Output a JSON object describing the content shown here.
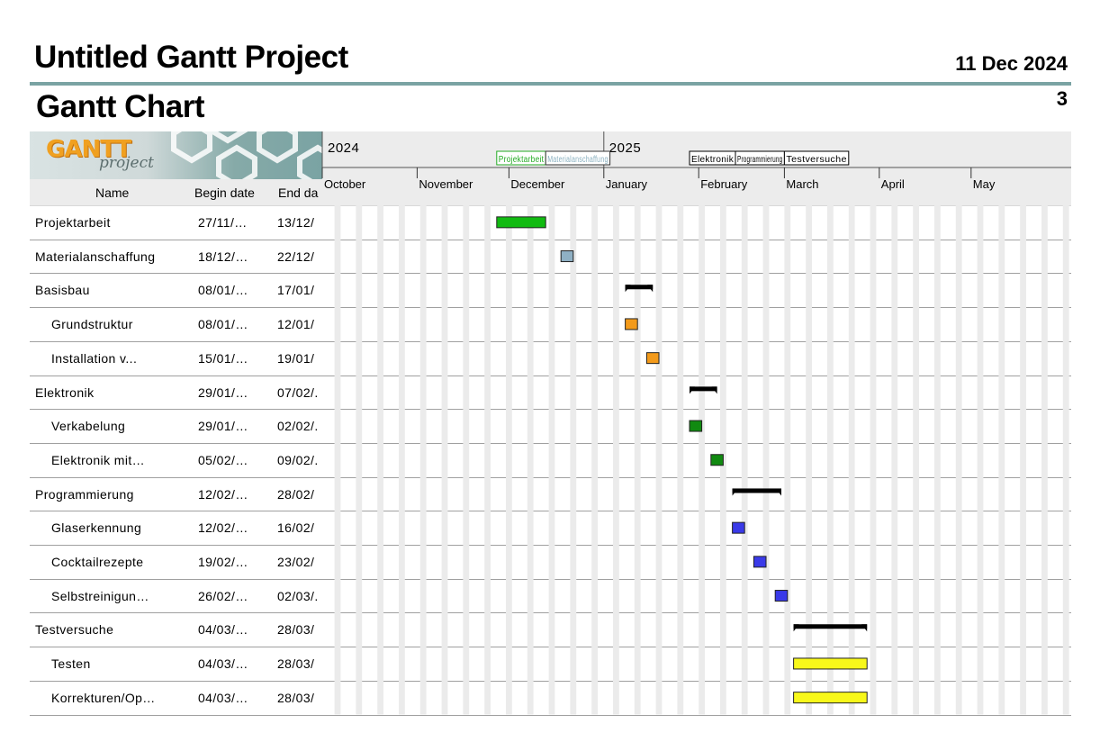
{
  "header": {
    "title": "Untitled Gantt Project",
    "date": "11 Dec 2024",
    "subtitle": "Gantt Chart",
    "page_number": "3"
  },
  "logo": {
    "word": "GANTT",
    "sub": "project"
  },
  "table": {
    "columns": [
      "Name",
      "Begin date",
      "End da"
    ]
  },
  "chart_data": {
    "type": "gantt",
    "years": [
      {
        "label": "2024",
        "date": "2024-10-01"
      },
      {
        "label": "2025",
        "date": "2025-01-01"
      }
    ],
    "months": [
      {
        "label": "October",
        "date": "2024-10-01"
      },
      {
        "label": "November",
        "date": "2024-11-01"
      },
      {
        "label": "December",
        "date": "2024-12-01"
      },
      {
        "label": "January",
        "date": "2025-01-01"
      },
      {
        "label": "February",
        "date": "2025-02-01"
      },
      {
        "label": "March",
        "date": "2025-03-01"
      },
      {
        "label": "April",
        "date": "2025-04-01"
      },
      {
        "label": "May",
        "date": "2025-05-01"
      }
    ],
    "range": [
      "2024-10-01",
      "2025-05-31"
    ],
    "timeline_labels": [
      {
        "label": "Projektarbeit",
        "start": "2024-11-27",
        "end": "2024-12-13",
        "color": "#22aa22",
        "border": "#22aa22"
      },
      {
        "label": "Materialanschaffung",
        "start": "2024-12-13",
        "end": "2025-01-03",
        "color": "#8ab0c0",
        "border": "#333333"
      },
      {
        "label": "Elektronik",
        "start": "2025-01-29",
        "end": "2025-02-13",
        "color": "#000000",
        "border": "#000000"
      },
      {
        "label": "Programmierung",
        "start": "2025-02-13",
        "end": "2025-03-01",
        "color": "#000000",
        "border": "#000000"
      },
      {
        "label": "Testversuche",
        "start": "2025-03-01",
        "end": "2025-03-22",
        "color": "#000000",
        "border": "#000000"
      }
    ],
    "tasks": [
      {
        "name": "Projektarbeit",
        "begin": "27/11/…",
        "end": "13/12/",
        "start_date": "2024-11-27",
        "end_date": "2024-12-13",
        "kind": "task",
        "color": "#11bb11",
        "indent": 0
      },
      {
        "name": "Materialanschaffung",
        "begin": "18/12/…",
        "end": "22/12/",
        "start_date": "2024-12-18",
        "end_date": "2024-12-22",
        "kind": "task",
        "color": "#8fb0c4",
        "indent": 0
      },
      {
        "name": "Basisbau",
        "begin": "08/01/…",
        "end": "17/01/",
        "start_date": "2025-01-08",
        "end_date": "2025-01-17",
        "kind": "summary",
        "color": "#000000",
        "indent": 0
      },
      {
        "name": "Grundstruktur",
        "begin": "08/01/…",
        "end": "12/01/",
        "start_date": "2025-01-08",
        "end_date": "2025-01-12",
        "kind": "task",
        "color": "#f39a1a",
        "indent": 1
      },
      {
        "name": "Installation v...",
        "begin": "15/01/…",
        "end": "19/01/",
        "start_date": "2025-01-15",
        "end_date": "2025-01-19",
        "kind": "task",
        "color": "#f39a1a",
        "indent": 1
      },
      {
        "name": "Elektronik",
        "begin": "29/01/…",
        "end": "07/02/.",
        "start_date": "2025-01-29",
        "end_date": "2025-02-07",
        "kind": "summary",
        "color": "#000000",
        "indent": 0
      },
      {
        "name": "Verkabelung",
        "begin": "29/01/…",
        "end": "02/02/.",
        "start_date": "2025-01-29",
        "end_date": "2025-02-02",
        "kind": "task",
        "color": "#118a11",
        "indent": 1
      },
      {
        "name": "Elektronik mit…",
        "begin": "05/02/…",
        "end": "09/02/.",
        "start_date": "2025-02-05",
        "end_date": "2025-02-09",
        "kind": "task",
        "color": "#118a11",
        "indent": 1
      },
      {
        "name": "Programmierung",
        "begin": "12/02/…",
        "end": "28/02/",
        "start_date": "2025-02-12",
        "end_date": "2025-02-28",
        "kind": "summary",
        "color": "#000000",
        "indent": 0
      },
      {
        "name": "Glaserkennung",
        "begin": "12/02/…",
        "end": "16/02/",
        "start_date": "2025-02-12",
        "end_date": "2025-02-16",
        "kind": "task",
        "color": "#3a3ae8",
        "indent": 1
      },
      {
        "name": "Cocktailrezepte",
        "begin": "19/02/…",
        "end": "23/02/",
        "start_date": "2025-02-19",
        "end_date": "2025-02-23",
        "kind": "task",
        "color": "#3a3ae8",
        "indent": 1
      },
      {
        "name": "Selbstreinigun…",
        "begin": "26/02/…",
        "end": "02/03/.",
        "start_date": "2025-02-26",
        "end_date": "2025-03-02",
        "kind": "task",
        "color": "#3a3ae8",
        "indent": 1
      },
      {
        "name": "Testversuche",
        "begin": "04/03/…",
        "end": "28/03/",
        "start_date": "2025-03-04",
        "end_date": "2025-03-28",
        "kind": "summary",
        "color": "#000000",
        "indent": 0
      },
      {
        "name": "Testen",
        "begin": "04/03/…",
        "end": "28/03/",
        "start_date": "2025-03-04",
        "end_date": "2025-03-28",
        "kind": "task",
        "color": "#f8f81a",
        "indent": 1
      },
      {
        "name": "Korrekturen/Op…",
        "begin": "04/03/…",
        "end": "28/03/",
        "start_date": "2025-03-04",
        "end_date": "2025-03-28",
        "kind": "task",
        "color": "#f8f81a",
        "indent": 1
      }
    ]
  }
}
